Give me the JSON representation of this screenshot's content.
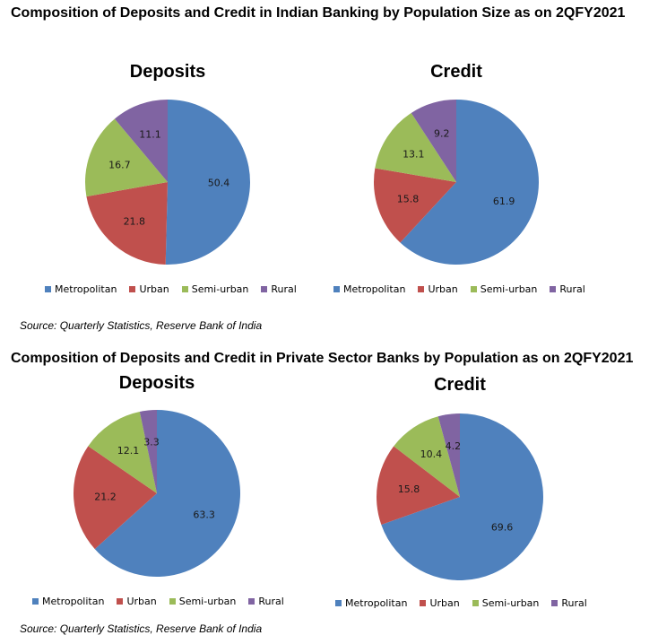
{
  "section1": {
    "title": "Composition of Deposits and Credit in Indian Banking by Population Size as on 2QFY2021",
    "source": "Source: Quarterly Statistics, Reserve Bank of India"
  },
  "section2": {
    "title": "Composition of Deposits and Credit in Private Sector Banks by Population as on 2QFY2021",
    "source": "Source: Quarterly Statistics, Reserve Bank of India"
  },
  "legend": {
    "labels": [
      "Metropolitan",
      "Urban",
      "Semi-urban",
      "Rural"
    ],
    "colors": [
      "#4f81bd",
      "#c0504d",
      "#9bbb59",
      "#8064a2"
    ]
  },
  "chart_data": [
    {
      "type": "pie",
      "title": "Deposits",
      "categories": [
        "Metropolitan",
        "Urban",
        "Semi-urban",
        "Rural"
      ],
      "values": [
        50.4,
        21.8,
        16.7,
        11.1
      ]
    },
    {
      "type": "pie",
      "title": "Credit",
      "categories": [
        "Metropolitan",
        "Urban",
        "Semi-urban",
        "Rural"
      ],
      "values": [
        61.9,
        15.8,
        13.1,
        9.2
      ]
    },
    {
      "type": "pie",
      "title": "Deposits",
      "categories": [
        "Metropolitan",
        "Urban",
        "Semi-urban",
        "Rural"
      ],
      "values": [
        63.3,
        21.2,
        12.1,
        3.3
      ]
    },
    {
      "type": "pie",
      "title": "Credit",
      "categories": [
        "Metropolitan",
        "Urban",
        "Semi-urban",
        "Rural"
      ],
      "values": [
        69.6,
        15.8,
        10.4,
        4.2
      ]
    }
  ]
}
